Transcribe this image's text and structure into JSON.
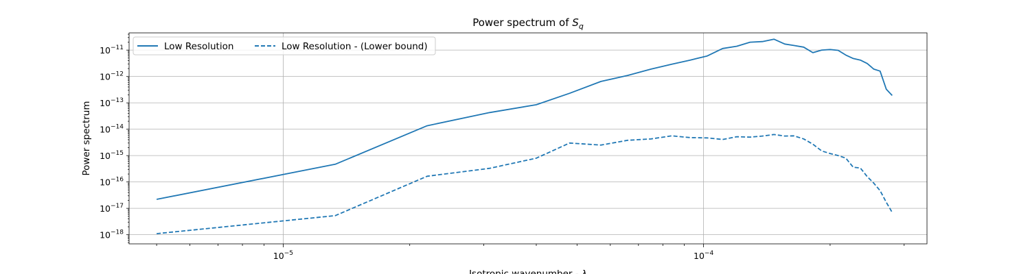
{
  "chart_data": {
    "type": "line",
    "title": "Power spectrum of",
    "title_math": "S",
    "title_math_sub": "q",
    "xlabel": "Isotropic wavenumber - ",
    "xlabel_math": "λ",
    "ylabel": "Power spectrum",
    "x_scale": "log",
    "y_scale": "log",
    "xlim": [
      4.3e-06,
      0.00034
    ],
    "ylim": [
      4.5e-19,
      4.5e-11
    ],
    "grid": true,
    "legend_position": "top-left",
    "x_ticks": [
      {
        "value": 1e-05,
        "base": "10",
        "exp": "−5"
      },
      {
        "value": 0.0001,
        "base": "10",
        "exp": "−4"
      }
    ],
    "y_ticks": [
      {
        "value": 1e-18,
        "base": "10",
        "exp": "−18"
      },
      {
        "value": 1e-17,
        "base": "10",
        "exp": "−17"
      },
      {
        "value": 1e-16,
        "base": "10",
        "exp": "−16"
      },
      {
        "value": 1e-15,
        "base": "10",
        "exp": "−15"
      },
      {
        "value": 1e-14,
        "base": "10",
        "exp": "−14"
      },
      {
        "value": 1e-13,
        "base": "10",
        "exp": "−13"
      },
      {
        "value": 1e-12,
        "base": "10",
        "exp": "−12"
      },
      {
        "value": 1e-11,
        "base": "10",
        "exp": "−11"
      }
    ],
    "series": [
      {
        "name": "Low Resolution",
        "style": "solid",
        "color": "#1f77b4",
        "x": [
          5e-06,
          1.33e-05,
          2.2e-05,
          3.1e-05,
          4e-05,
          4.8e-05,
          5.7e-05,
          6.6e-05,
          7.5e-05,
          8.4e-05,
          9.3e-05,
          0.000102,
          0.000111,
          0.00012,
          0.000129,
          0.000138,
          0.000147,
          0.000156,
          0.000164,
          0.000173,
          0.000182,
          0.000191,
          0.0002,
          0.000209,
          0.000218,
          0.000227,
          0.000236,
          0.000245,
          0.000254,
          0.000263,
          0.000272,
          0.000281
        ],
        "y": [
          2.2e-17,
          4.7e-16,
          1.35e-14,
          4.3e-14,
          8.5e-14,
          2.3e-13,
          6.5e-13,
          1.1e-12,
          1.9e-12,
          2.9e-12,
          4.2e-12,
          6e-12,
          1.15e-11,
          1.4e-11,
          2e-11,
          2.1e-11,
          2.6e-11,
          1.7e-11,
          1.5e-11,
          1.3e-11,
          8e-12,
          1e-11,
          1.05e-11,
          9.8e-12,
          6.5e-12,
          4.8e-12,
          4.2e-12,
          3.1e-12,
          1.9e-12,
          1.6e-12,
          3.3e-13,
          1.9e-13
        ]
      },
      {
        "name": "Low Resolution - (Lower bound)",
        "style": "dashed",
        "color": "#1f77b4",
        "x": [
          5e-06,
          1.33e-05,
          2.2e-05,
          3.1e-05,
          4e-05,
          4.8e-05,
          5.7e-05,
          6.6e-05,
          7.5e-05,
          8.4e-05,
          9.3e-05,
          0.000102,
          0.000111,
          0.00012,
          0.000129,
          0.000138,
          0.000147,
          0.000156,
          0.000164,
          0.000173,
          0.000182,
          0.000191,
          0.0002,
          0.000209,
          0.000218,
          0.000227,
          0.000236,
          0.000245,
          0.000254,
          0.000263,
          0.000272,
          0.000281
        ],
        "y": [
          1.1e-18,
          5.3e-18,
          1.65e-16,
          3.3e-16,
          8e-16,
          3e-15,
          2.5e-15,
          3.8e-15,
          4.3e-15,
          5.6e-15,
          4.8e-15,
          4.7e-15,
          4.1e-15,
          5.2e-15,
          5e-15,
          5.5e-15,
          6.3e-15,
          5.5e-15,
          5.6e-15,
          4.3e-15,
          2.7e-15,
          1.5e-15,
          1.2e-15,
          1e-15,
          8e-16,
          3.6e-16,
          3.4e-16,
          1.6e-16,
          9e-17,
          4.7e-17,
          1.7e-17,
          7e-18
        ]
      }
    ]
  }
}
